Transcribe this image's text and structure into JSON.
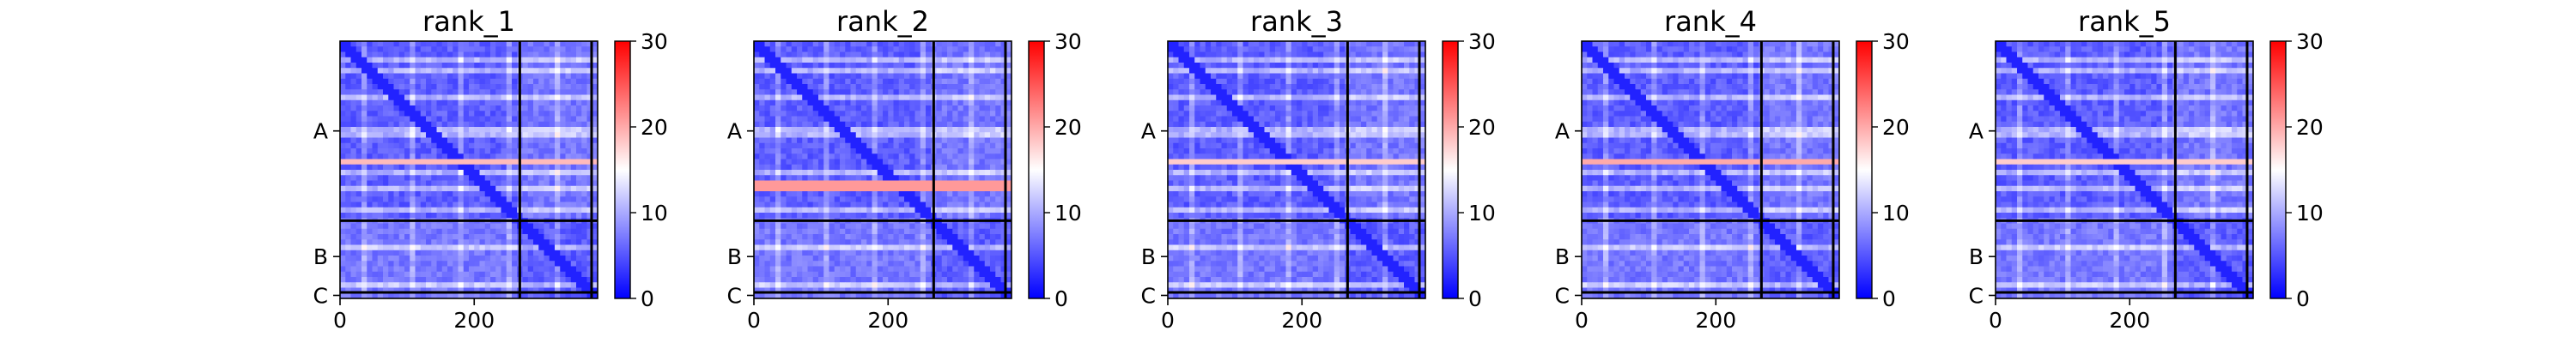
{
  "figure": {
    "background": "#ffffff",
    "colormap": [
      "#0000ff",
      "#ffffff",
      "#ff0000"
    ]
  },
  "chart_data": [
    {
      "type": "heatmap",
      "title": "rank_1",
      "xlim": [
        0,
        384
      ],
      "ylim": [
        0,
        384
      ],
      "x_ticks": [
        0,
        200
      ],
      "y_groups": [
        {
          "label": "A",
          "start": 0,
          "end": 268
        },
        {
          "label": "B",
          "start": 268,
          "end": 375
        },
        {
          "label": "C",
          "start": 375,
          "end": 384
        }
      ],
      "boundaries": [
        268,
        375
      ],
      "colorbar": {
        "min": 0,
        "max": 30,
        "ticks": [
          0,
          10,
          20,
          30
        ]
      },
      "hot_rows": [
        {
          "y": 180,
          "value": 19
        }
      ],
      "grid": false
    },
    {
      "type": "heatmap",
      "title": "rank_2",
      "xlim": [
        0,
        384
      ],
      "ylim": [
        0,
        384
      ],
      "x_ticks": [
        0,
        200
      ],
      "y_groups": [
        {
          "label": "A",
          "start": 0,
          "end": 268
        },
        {
          "label": "B",
          "start": 268,
          "end": 375
        },
        {
          "label": "C",
          "start": 375,
          "end": 384
        }
      ],
      "boundaries": [
        268,
        375
      ],
      "colorbar": {
        "min": 0,
        "max": 30,
        "ticks": [
          0,
          10,
          20,
          30
        ]
      },
      "hot_rows": [
        {
          "y": 218,
          "value": 21
        }
      ],
      "grid": false
    },
    {
      "type": "heatmap",
      "title": "rank_3",
      "xlim": [
        0,
        384
      ],
      "ylim": [
        0,
        384
      ],
      "x_ticks": [
        0,
        200
      ],
      "y_groups": [
        {
          "label": "A",
          "start": 0,
          "end": 268
        },
        {
          "label": "B",
          "start": 268,
          "end": 375
        },
        {
          "label": "C",
          "start": 375,
          "end": 384
        }
      ],
      "boundaries": [
        268,
        375
      ],
      "colorbar": {
        "min": 0,
        "max": 30,
        "ticks": [
          0,
          10,
          20,
          30
        ]
      },
      "hot_rows": [
        {
          "y": 180,
          "value": 18
        }
      ],
      "grid": false
    },
    {
      "type": "heatmap",
      "title": "rank_4",
      "xlim": [
        0,
        384
      ],
      "ylim": [
        0,
        384
      ],
      "x_ticks": [
        0,
        200
      ],
      "y_groups": [
        {
          "label": "A",
          "start": 0,
          "end": 268
        },
        {
          "label": "B",
          "start": 268,
          "end": 375
        },
        {
          "label": "C",
          "start": 375,
          "end": 384
        }
      ],
      "boundaries": [
        268,
        375
      ],
      "colorbar": {
        "min": 0,
        "max": 30,
        "ticks": [
          0,
          10,
          20,
          30
        ]
      },
      "hot_rows": [
        {
          "y": 180,
          "value": 20
        }
      ],
      "grid": false
    },
    {
      "type": "heatmap",
      "title": "rank_5",
      "xlim": [
        0,
        384
      ],
      "ylim": [
        0,
        384
      ],
      "x_ticks": [
        0,
        200
      ],
      "y_groups": [
        {
          "label": "A",
          "start": 0,
          "end": 268
        },
        {
          "label": "B",
          "start": 268,
          "end": 375
        },
        {
          "label": "C",
          "start": 375,
          "end": 384
        }
      ],
      "boundaries": [
        268,
        375
      ],
      "colorbar": {
        "min": 0,
        "max": 30,
        "ticks": [
          0,
          10,
          20,
          30
        ]
      },
      "hot_rows": [
        {
          "y": 180,
          "value": 18
        }
      ],
      "grid": false
    }
  ]
}
